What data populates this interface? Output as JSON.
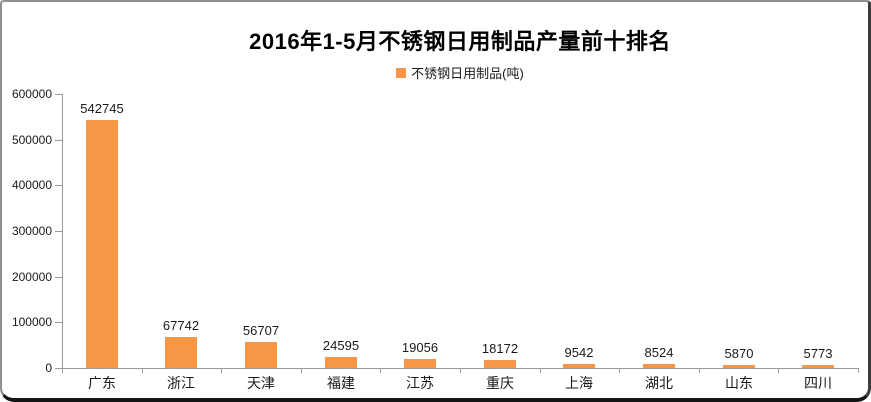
{
  "chart_data": {
    "type": "bar",
    "title": "2016年1-5月不锈钢日用制品产量前十排名",
    "series_name": "不锈钢日用制品(吨)",
    "categories": [
      "广东",
      "浙江",
      "天津",
      "福建",
      "江苏",
      "重庆",
      "上海",
      "湖北",
      "山东",
      "四川"
    ],
    "values": [
      542745,
      67742,
      56707,
      24595,
      19056,
      18172,
      9542,
      8524,
      5870,
      5773
    ],
    "xlabel": "",
    "ylabel": "",
    "ylim": [
      0,
      600000
    ],
    "y_ticks": [
      0,
      100000,
      200000,
      300000,
      400000,
      500000,
      600000
    ],
    "grid": false,
    "legend_position": "top-center",
    "data_labels": true,
    "colors": {
      "bar": "#F79646",
      "axis": "#9B9B9B",
      "label_text": "#1A1A1A",
      "title_text": "#000000",
      "background": "#FFFFFF"
    }
  }
}
